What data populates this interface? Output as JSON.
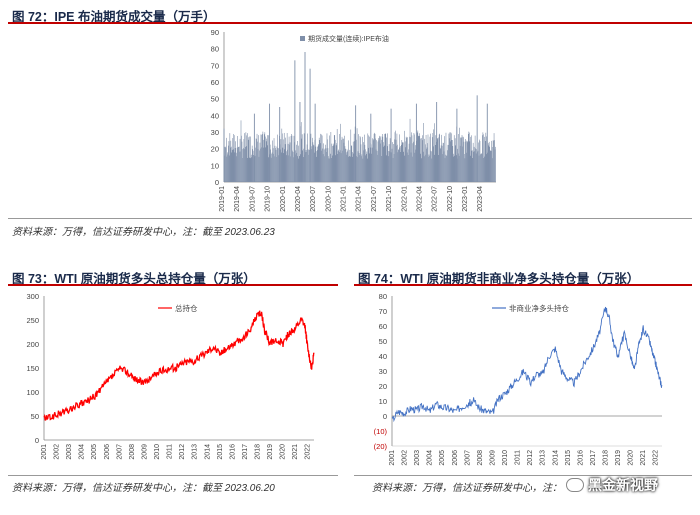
{
  "fig72": {
    "title": "图 72：IPE 布油期货成交量（万手）",
    "source": "资料来源：万得，信达证券研发中心，注：截至 2023.06.23"
  },
  "fig73": {
    "title": "图 73：WTI 原油期货多头总持仓量（万张）",
    "source": "资料来源：万得，信达证券研发中心，注：截至 2023.06.20"
  },
  "fig74": {
    "title": "图 74：WTI 原油期货非商业净多头持仓量（万张）",
    "source": "资料来源：万得，信达证券研发中心，注："
  },
  "watermark": {
    "text": "黑金新视野",
    "icon": "wechat-icon"
  },
  "colors": {
    "fig72": "#7f8fa9",
    "fig73": "#ff0000",
    "fig74": "#4472c4",
    "rule": "#c00000"
  },
  "chart_data": [
    {
      "id": "fig72",
      "type": "bar",
      "title": "",
      "legend": "期货成交量(连续):IPE布油",
      "legend_position": "top",
      "ylim": [
        0,
        90
      ],
      "yticks": [
        0,
        10,
        20,
        30,
        40,
        50,
        60,
        70,
        80,
        90
      ],
      "xticks": [
        "2019-01",
        "2019-04",
        "2019-07",
        "2019-10",
        "2020-01",
        "2020-04",
        "2020-07",
        "2020-10",
        "2021-01",
        "2021-04",
        "2021-07",
        "2021-10",
        "2022-01",
        "2022-04",
        "2022-07",
        "2022-10",
        "2023-01",
        "2023-04"
      ],
      "x_start": "2019-01",
      "x_end": "2023-06-23",
      "baseline_range": [
        14,
        30
      ],
      "spikes": [
        {
          "date": "2019-01",
          "value": 32
        },
        {
          "date": "2019-07",
          "value": 41
        },
        {
          "date": "2019-10",
          "value": 47
        },
        {
          "date": "2019-12",
          "value": 45
        },
        {
          "date": "2020-03",
          "value": 73
        },
        {
          "date": "2020-04",
          "value": 48
        },
        {
          "date": "2020-05",
          "value": 78
        },
        {
          "date": "2020-06",
          "value": 68
        },
        {
          "date": "2020-07",
          "value": 47
        },
        {
          "date": "2021-03",
          "value": 46
        },
        {
          "date": "2021-06",
          "value": 41
        },
        {
          "date": "2021-10",
          "value": 44
        },
        {
          "date": "2022-03",
          "value": 47
        },
        {
          "date": "2022-07",
          "value": 48
        },
        {
          "date": "2022-11",
          "value": 44
        },
        {
          "date": "2023-03",
          "value": 52
        },
        {
          "date": "2023-05",
          "value": 47
        }
      ]
    },
    {
      "id": "fig73",
      "type": "line",
      "title": "",
      "legend": "总持仓",
      "legend_position": "top",
      "ylim": [
        0,
        300
      ],
      "yticks": [
        0,
        50,
        100,
        150,
        200,
        250,
        300
      ],
      "xticks": [
        "2001",
        "2002",
        "2003",
        "2004",
        "2005",
        "2006",
        "2007",
        "2008",
        "2009",
        "2010",
        "2011",
        "2012",
        "2013",
        "2014",
        "2015",
        "2016",
        "2017",
        "2018",
        "2019",
        "2020",
        "2021",
        "2022"
      ],
      "x_range": [
        2001,
        2022.5
      ],
      "x": [
        2001.0,
        2001.5,
        2002.0,
        2002.5,
        2003.0,
        2003.5,
        2004.0,
        2004.5,
        2005.0,
        2005.5,
        2006.0,
        2006.5,
        2007.0,
        2007.5,
        2008.0,
        2008.5,
        2009.0,
        2009.5,
        2010.0,
        2010.5,
        2011.0,
        2011.5,
        2012.0,
        2012.5,
        2013.0,
        2013.5,
        2014.0,
        2014.5,
        2015.0,
        2015.5,
        2016.0,
        2016.5,
        2017.0,
        2017.5,
        2018.0,
        2018.3,
        2018.6,
        2019.0,
        2019.5,
        2020.0,
        2020.3,
        2020.6,
        2021.0,
        2021.5,
        2021.8,
        2022.0,
        2022.3,
        2022.5
      ],
      "y": [
        45,
        47,
        52,
        58,
        62,
        70,
        75,
        82,
        90,
        105,
        120,
        135,
        148,
        145,
        132,
        125,
        118,
        130,
        140,
        145,
        150,
        150,
        160,
        165,
        165,
        175,
        185,
        195,
        180,
        190,
        200,
        205,
        215,
        235,
        260,
        265,
        225,
        200,
        210,
        200,
        215,
        225,
        230,
        250,
        235,
        190,
        150,
        180
      ]
    },
    {
      "id": "fig74",
      "type": "line",
      "title": "",
      "legend": "非商业净多头持仓",
      "legend_position": "top",
      "ylim": [
        -20,
        80
      ],
      "yticks": [
        -20,
        -10,
        0,
        10,
        20,
        30,
        40,
        50,
        60,
        70,
        80
      ],
      "ytick_labels": [
        "(20)",
        "(10)",
        "0",
        "10",
        "20",
        "30",
        "40",
        "50",
        "60",
        "70",
        "80"
      ],
      "xticks": [
        "2001",
        "2002",
        "2003",
        "2004",
        "2005",
        "2006",
        "2007",
        "2008",
        "2009",
        "2010",
        "2011",
        "2012",
        "2013",
        "2014",
        "2015",
        "2016",
        "2017",
        "2018",
        "2019",
        "2020",
        "2021",
        "2022"
      ],
      "x_range": [
        2001,
        2022.5
      ],
      "x": [
        2001.0,
        2001.5,
        2002.0,
        2002.5,
        2003.0,
        2003.5,
        2004.0,
        2004.5,
        2005.0,
        2005.5,
        2006.0,
        2006.5,
        2007.0,
        2007.5,
        2008.0,
        2008.5,
        2009.0,
        2009.5,
        2010.0,
        2010.5,
        2011.0,
        2011.5,
        2012.0,
        2012.5,
        2013.0,
        2013.5,
        2014.0,
        2014.5,
        2015.0,
        2015.5,
        2016.0,
        2016.5,
        2017.0,
        2017.5,
        2018.0,
        2018.3,
        2018.6,
        2019.0,
        2019.5,
        2020.0,
        2020.3,
        2020.6,
        2021.0,
        2021.5,
        2021.8,
        2022.0,
        2022.3,
        2022.5
      ],
      "y": [
        -3,
        3,
        2,
        5,
        4,
        7,
        3,
        8,
        6,
        5,
        3,
        6,
        8,
        10,
        5,
        3,
        2,
        12,
        15,
        20,
        25,
        30,
        22,
        28,
        28,
        40,
        45,
        30,
        25,
        22,
        30,
        38,
        45,
        55,
        73,
        65,
        50,
        40,
        55,
        40,
        30,
        45,
        58,
        50,
        40,
        35,
        25,
        20
      ]
    }
  ]
}
